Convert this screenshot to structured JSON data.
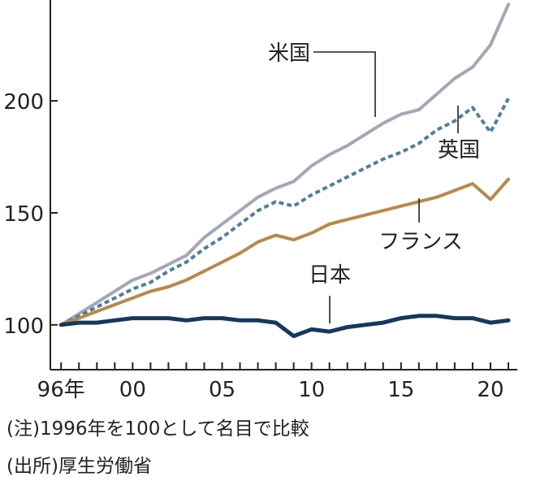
{
  "chart_data": {
    "type": "line",
    "title": "",
    "xlabel": "",
    "ylabel": "",
    "ylim": [
      80,
      245
    ],
    "xlim": [
      1995.4,
      2021.5
    ],
    "grid": false,
    "legend": "annotations",
    "y_ticks": [
      {
        "value": 100,
        "label": "100"
      },
      {
        "value": 150,
        "label": "150"
      },
      {
        "value": 200,
        "label": "200"
      }
    ],
    "x_tick_years": [
      1996,
      1997,
      1998,
      1999,
      2000,
      2001,
      2002,
      2003,
      2004,
      2005,
      2006,
      2007,
      2008,
      2009,
      2010,
      2011,
      2012,
      2013,
      2014,
      2015,
      2016,
      2017,
      2018,
      2019,
      2020,
      2021
    ],
    "x_tick_labels": [
      {
        "year": 1996,
        "label": "96年"
      },
      {
        "year": 2000,
        "label": "00"
      },
      {
        "year": 2005,
        "label": "05"
      },
      {
        "year": 2010,
        "label": "10"
      },
      {
        "year": 2015,
        "label": "15"
      },
      {
        "year": 2020,
        "label": "20"
      }
    ],
    "x": [
      1996,
      1997,
      1998,
      1999,
      2000,
      2001,
      2002,
      2003,
      2004,
      2005,
      2006,
      2007,
      2008,
      2009,
      2010,
      2011,
      2012,
      2013,
      2014,
      2015,
      2016,
      2017,
      2018,
      2019,
      2020,
      2021
    ],
    "series": [
      {
        "name": "米国",
        "color": "#a7a6b8",
        "style": "solid",
        "values": [
          100,
          105,
          110,
          115,
          120,
          123,
          127,
          131,
          139,
          145,
          151,
          157,
          161,
          164,
          171,
          176,
          180,
          185,
          190,
          194,
          196,
          203,
          210,
          215,
          225,
          243
        ]
      },
      {
        "name": "英国",
        "color": "#4d8099",
        "style": "dashed",
        "values": [
          100,
          104,
          108,
          112,
          116,
          119,
          124,
          128,
          134,
          139,
          145,
          151,
          155,
          153,
          158,
          162,
          166,
          170,
          174,
          177,
          181,
          187,
          191,
          197,
          186,
          201
        ]
      },
      {
        "name": "フランス",
        "color": "#b8894a",
        "style": "solid",
        "values": [
          100,
          103,
          106,
          109,
          112,
          115,
          117,
          120,
          124,
          128,
          132,
          137,
          140,
          138,
          141,
          145,
          147,
          149,
          151,
          153,
          155,
          157,
          160,
          163,
          156,
          165
        ]
      },
      {
        "name": "日本",
        "color": "#163760",
        "style": "solid",
        "values": [
          100,
          101,
          101,
          102,
          103,
          103,
          103,
          102,
          103,
          103,
          102,
          102,
          101,
          95,
          98,
          97,
          99,
          100,
          101,
          103,
          104,
          104,
          103,
          103,
          101,
          102
        ]
      }
    ],
    "annotations": [
      {
        "series": "米国",
        "text": "米国"
      },
      {
        "series": "英国",
        "text": "英国"
      },
      {
        "series": "フランス",
        "text": "フランス"
      },
      {
        "series": "日本",
        "text": "日本"
      }
    ]
  },
  "notes": {
    "note1": "(注)1996年を100として名目で比較",
    "note2": "(出所)厚生労働省"
  }
}
